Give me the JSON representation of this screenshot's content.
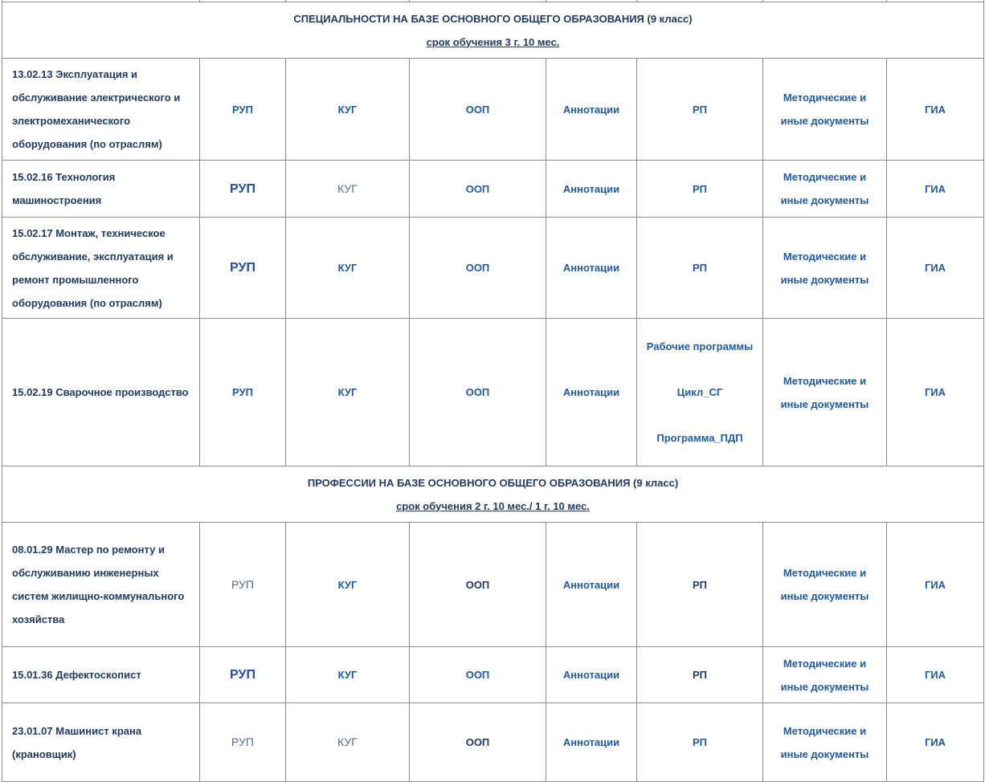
{
  "sections": [
    {
      "title": "СПЕЦИАЛЬНОСТИ НА БАЗЕ ОСНОВНОГО ОБЩЕГО ОБРАЗОВАНИЯ (9 класс)",
      "subtitle": "срок обучения 3 г. 10 мес.",
      "rows": [
        {
          "name": "13.02.13 Эксплуатация и обслуживание электрического и электромеханического оборудования (по отраслям)",
          "cells": [
            [
              "РУП",
              ""
            ],
            [
              "КУГ",
              ""
            ],
            [
              "ООП",
              ""
            ],
            [
              "Аннотации",
              ""
            ],
            [
              "РП",
              ""
            ],
            [
              "Методические и иные документы",
              ""
            ],
            [
              "ГИА",
              ""
            ]
          ]
        },
        {
          "name": "15.02.16  Технология машиностроения",
          "cells": [
            [
              "РУП",
              "big"
            ],
            [
              "КУГ",
              "light"
            ],
            [
              "ООП",
              ""
            ],
            [
              "Аннотации",
              ""
            ],
            [
              "РП",
              ""
            ],
            [
              "Методические и иные документы",
              ""
            ],
            [
              "ГИА",
              ""
            ]
          ]
        },
        {
          "name": "15.02.17  Монтаж, техническое обслуживание, эксплуатация и ремонт промышленного оборудования (по отраслям)",
          "cells": [
            [
              "РУП",
              "big"
            ],
            [
              "КУГ",
              ""
            ],
            [
              "ООП",
              ""
            ],
            [
              "Аннотации",
              ""
            ],
            [
              "РП",
              ""
            ],
            [
              "Методические и иные документы",
              ""
            ],
            [
              "ГИА",
              ""
            ]
          ]
        },
        {
          "name": "15.02.19 Сварочное производство",
          "cells": [
            [
              "РУП",
              ""
            ],
            [
              "КУГ",
              ""
            ],
            [
              "ООП",
              ""
            ],
            [
              "Аннотации",
              ""
            ],
            [
              [
                "Рабочие программы",
                "Цикл_СГ",
                "Программа_ПДП"
              ],
              ""
            ],
            [
              "Методические и иные документы",
              ""
            ],
            [
              "ГИА",
              ""
            ]
          ]
        }
      ]
    },
    {
      "title": "ПРОФЕССИИ НА БАЗЕ ОСНОВНОГО ОБЩЕГО ОБРАЗОВАНИЯ (9 класс)",
      "subtitle": "срок обучения 2 г. 10 мес./ 1 г. 10 мес.",
      "rows": [
        {
          "name": "08.01.29 Мастер по ремонту и обслуживанию инженерных систем жилищно-коммунального хозяйства",
          "cells": [
            [
              "РУП",
              "light"
            ],
            [
              "КУГ",
              ""
            ],
            [
              "ООП",
              "dark"
            ],
            [
              "Аннотации",
              ""
            ],
            [
              "РП",
              "dark"
            ],
            [
              "Методические и иные документы",
              ""
            ],
            [
              "ГИА",
              ""
            ]
          ]
        },
        {
          "name": "15.01.36 Дефектоскопист",
          "cells": [
            [
              "РУП",
              "big"
            ],
            [
              "КУГ",
              ""
            ],
            [
              "ООП",
              ""
            ],
            [
              "Аннотации",
              ""
            ],
            [
              "РП",
              "dark"
            ],
            [
              "Методические и иные документы",
              ""
            ],
            [
              "ГИА",
              ""
            ]
          ]
        },
        {
          "name": "23.01.07 Машинист крана (крановщик)",
          "cells": [
            [
              "РУП",
              "light"
            ],
            [
              "КУГ",
              "light"
            ],
            [
              "ООП",
              "dark"
            ],
            [
              "Аннотации",
              ""
            ],
            [
              "РП",
              ""
            ],
            [
              "Методические и иные документы",
              ""
            ],
            [
              "ГИА",
              ""
            ]
          ]
        }
      ]
    }
  ],
  "colors": {
    "link": "#1e5aa8",
    "text": "#1f3a66",
    "border": "#8a8a8a"
  }
}
